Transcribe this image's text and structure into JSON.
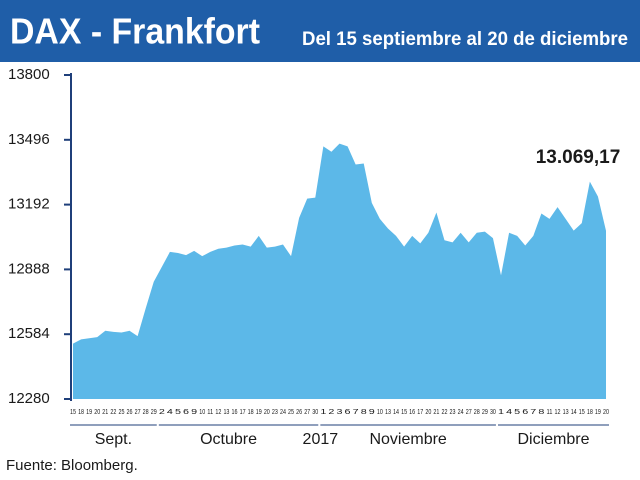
{
  "chart_data": {
    "type": "area",
    "title": "DAX - Frankfort",
    "subtitle": "Del  15 septiembre al 20 de diciembre",
    "annotation": "13.069,17",
    "source": "Fuente: Bloomberg.",
    "year_label": "2017",
    "month_labels": [
      "Sept.",
      "Octubre",
      "Noviembre",
      "Diciembre"
    ],
    "color": "#5cb8e8",
    "categories": [
      "15",
      "18",
      "19",
      "20",
      "21",
      "22",
      "25",
      "26",
      "27",
      "28",
      "29",
      "2",
      "4",
      "5",
      "6",
      "9",
      "10",
      "11",
      "12",
      "13",
      "16",
      "17",
      "18",
      "19",
      "20",
      "23",
      "24",
      "25",
      "26",
      "27",
      "30",
      "1",
      "2",
      "3",
      "6",
      "7",
      "8",
      "9",
      "10",
      "13",
      "14",
      "15",
      "16",
      "17",
      "20",
      "21",
      "22",
      "23",
      "24",
      "27",
      "28",
      "29",
      "30",
      "1",
      "4",
      "5",
      "6",
      "7",
      "8",
      "11",
      "12",
      "13",
      "14",
      "15",
      "18",
      "19",
      "20"
    ],
    "values": [
      12540,
      12560,
      12565,
      12570,
      12600,
      12595,
      12592,
      12600,
      12575,
      12705,
      12830,
      12900,
      12970,
      12965,
      12955,
      12975,
      12950,
      12970,
      12985,
      12990,
      13000,
      13005,
      12995,
      13045,
      12990,
      12995,
      13005,
      12950,
      13130,
      13220,
      13225,
      13465,
      13440,
      13478,
      13465,
      13380,
      13385,
      13200,
      13125,
      13080,
      13045,
      12995,
      13045,
      13010,
      13060,
      13155,
      13025,
      13015,
      13060,
      13015,
      13060,
      13065,
      13035,
      12860,
      13060,
      13045,
      13000,
      13045,
      13150,
      13125,
      13180,
      13125,
      13070,
      13105,
      13300,
      13230,
      13069.17
    ],
    "ylim": [
      12280,
      13800
    ],
    "yticks": [
      12280,
      12584,
      12888,
      13192,
      13496,
      13800
    ]
  }
}
